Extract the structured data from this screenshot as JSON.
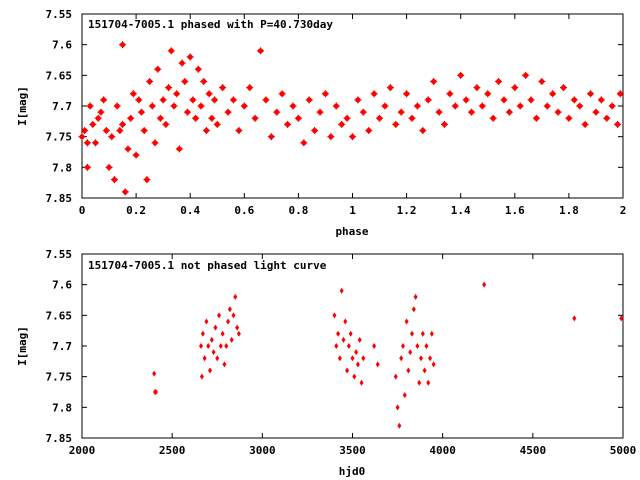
{
  "colors": {
    "points": "#ff0000"
  },
  "chart_data": [
    {
      "type": "scatter",
      "title": "151704-7005.1 phased with P=40.730day",
      "xlabel": "phase",
      "ylabel": "I[mag]",
      "xlim": [
        0,
        2
      ],
      "ylim": [
        7.55,
        7.85
      ],
      "y_inverted": true,
      "x_ticks": [
        "0",
        "0.2",
        "0.4",
        "0.6",
        "0.8",
        "1",
        "1.2",
        "1.4",
        "1.6",
        "1.8",
        "2"
      ],
      "y_ticks": [
        "7.55",
        "7.6",
        "7.65",
        "7.7",
        "7.75",
        "7.8",
        "7.85"
      ],
      "grid": false,
      "marker": "asterisk",
      "points": [
        [
          0.0,
          7.75
        ],
        [
          0.01,
          7.74
        ],
        [
          0.02,
          7.76
        ],
        [
          0.02,
          7.8
        ],
        [
          0.03,
          7.7
        ],
        [
          0.04,
          7.73
        ],
        [
          0.05,
          7.76
        ],
        [
          0.06,
          7.72
        ],
        [
          0.07,
          7.71
        ],
        [
          0.08,
          7.69
        ],
        [
          0.09,
          7.74
        ],
        [
          0.1,
          7.8
        ],
        [
          0.11,
          7.75
        ],
        [
          0.12,
          7.82
        ],
        [
          0.13,
          7.7
        ],
        [
          0.14,
          7.74
        ],
        [
          0.15,
          7.6
        ],
        [
          0.15,
          7.73
        ],
        [
          0.16,
          7.84
        ],
        [
          0.17,
          7.77
        ],
        [
          0.18,
          7.72
        ],
        [
          0.19,
          7.68
        ],
        [
          0.2,
          7.78
        ],
        [
          0.21,
          7.69
        ],
        [
          0.22,
          7.71
        ],
        [
          0.23,
          7.74
        ],
        [
          0.24,
          7.82
        ],
        [
          0.25,
          7.66
        ],
        [
          0.26,
          7.7
        ],
        [
          0.27,
          7.76
        ],
        [
          0.28,
          7.64
        ],
        [
          0.29,
          7.72
        ],
        [
          0.3,
          7.69
        ],
        [
          0.31,
          7.73
        ],
        [
          0.32,
          7.67
        ],
        [
          0.33,
          7.61
        ],
        [
          0.34,
          7.7
        ],
        [
          0.35,
          7.68
        ],
        [
          0.36,
          7.77
        ],
        [
          0.37,
          7.63
        ],
        [
          0.38,
          7.66
        ],
        [
          0.39,
          7.71
        ],
        [
          0.4,
          7.62
        ],
        [
          0.41,
          7.69
        ],
        [
          0.42,
          7.72
        ],
        [
          0.43,
          7.64
        ],
        [
          0.44,
          7.7
        ],
        [
          0.45,
          7.66
        ],
        [
          0.46,
          7.74
        ],
        [
          0.47,
          7.68
        ],
        [
          0.48,
          7.72
        ],
        [
          0.49,
          7.69
        ],
        [
          0.5,
          7.73
        ],
        [
          0.52,
          7.67
        ],
        [
          0.54,
          7.71
        ],
        [
          0.56,
          7.69
        ],
        [
          0.58,
          7.74
        ],
        [
          0.6,
          7.7
        ],
        [
          0.62,
          7.67
        ],
        [
          0.64,
          7.72
        ],
        [
          0.66,
          7.61
        ],
        [
          0.68,
          7.69
        ],
        [
          0.7,
          7.75
        ],
        [
          0.72,
          7.71
        ],
        [
          0.74,
          7.68
        ],
        [
          0.76,
          7.73
        ],
        [
          0.78,
          7.7
        ],
        [
          0.8,
          7.72
        ],
        [
          0.82,
          7.76
        ],
        [
          0.84,
          7.69
        ],
        [
          0.86,
          7.74
        ],
        [
          0.88,
          7.71
        ],
        [
          0.9,
          7.68
        ],
        [
          0.92,
          7.75
        ],
        [
          0.94,
          7.7
        ],
        [
          0.96,
          7.73
        ],
        [
          0.98,
          7.72
        ],
        [
          1.0,
          7.75
        ],
        [
          1.02,
          7.69
        ],
        [
          1.04,
          7.71
        ],
        [
          1.06,
          7.74
        ],
        [
          1.08,
          7.68
        ],
        [
          1.1,
          7.72
        ],
        [
          1.12,
          7.7
        ],
        [
          1.14,
          7.67
        ],
        [
          1.16,
          7.73
        ],
        [
          1.18,
          7.71
        ],
        [
          1.2,
          7.68
        ],
        [
          1.22,
          7.72
        ],
        [
          1.24,
          7.7
        ],
        [
          1.26,
          7.74
        ],
        [
          1.28,
          7.69
        ],
        [
          1.3,
          7.66
        ],
        [
          1.32,
          7.71
        ],
        [
          1.34,
          7.73
        ],
        [
          1.36,
          7.68
        ],
        [
          1.38,
          7.7
        ],
        [
          1.4,
          7.65
        ],
        [
          1.42,
          7.69
        ],
        [
          1.44,
          7.71
        ],
        [
          1.46,
          7.67
        ],
        [
          1.48,
          7.7
        ],
        [
          1.5,
          7.68
        ],
        [
          1.52,
          7.72
        ],
        [
          1.54,
          7.66
        ],
        [
          1.56,
          7.69
        ],
        [
          1.58,
          7.71
        ],
        [
          1.6,
          7.67
        ],
        [
          1.62,
          7.7
        ],
        [
          1.64,
          7.65
        ],
        [
          1.66,
          7.69
        ],
        [
          1.68,
          7.72
        ],
        [
          1.7,
          7.66
        ],
        [
          1.72,
          7.7
        ],
        [
          1.74,
          7.68
        ],
        [
          1.76,
          7.71
        ],
        [
          1.78,
          7.67
        ],
        [
          1.8,
          7.72
        ],
        [
          1.82,
          7.69
        ],
        [
          1.84,
          7.7
        ],
        [
          1.86,
          7.73
        ],
        [
          1.88,
          7.68
        ],
        [
          1.9,
          7.71
        ],
        [
          1.92,
          7.69
        ],
        [
          1.94,
          7.72
        ],
        [
          1.96,
          7.7
        ],
        [
          1.98,
          7.73
        ],
        [
          1.99,
          7.68
        ]
      ]
    },
    {
      "type": "scatter",
      "title": "151704-7005.1 not phased light curve",
      "xlabel": "hjd0",
      "ylabel": "I[mag]",
      "xlim": [
        2000,
        5000
      ],
      "ylim": [
        7.55,
        7.85
      ],
      "y_inverted": true,
      "x_ticks": [
        "2000",
        "2500",
        "3000",
        "3500",
        "4000",
        "4500",
        "5000"
      ],
      "y_ticks": [
        "7.55",
        "7.6",
        "7.65",
        "7.7",
        "7.75",
        "7.8",
        "7.85"
      ],
      "grid": false,
      "marker": "diamond",
      "points": [
        [
          2400,
          7.745
        ],
        [
          2405,
          7.775
        ],
        [
          2410,
          7.775
        ],
        [
          2660,
          7.7
        ],
        [
          2665,
          7.75
        ],
        [
          2670,
          7.68
        ],
        [
          2680,
          7.72
        ],
        [
          2690,
          7.66
        ],
        [
          2700,
          7.7
        ],
        [
          2710,
          7.74
        ],
        [
          2720,
          7.69
        ],
        [
          2730,
          7.71
        ],
        [
          2740,
          7.67
        ],
        [
          2750,
          7.72
        ],
        [
          2760,
          7.65
        ],
        [
          2770,
          7.7
        ],
        [
          2780,
          7.68
        ],
        [
          2790,
          7.73
        ],
        [
          2800,
          7.7
        ],
        [
          2810,
          7.66
        ],
        [
          2820,
          7.64
        ],
        [
          2830,
          7.69
        ],
        [
          2840,
          7.65
        ],
        [
          2850,
          7.62
        ],
        [
          2860,
          7.67
        ],
        [
          2870,
          7.68
        ],
        [
          3400,
          7.65
        ],
        [
          3410,
          7.7
        ],
        [
          3420,
          7.68
        ],
        [
          3430,
          7.72
        ],
        [
          3440,
          7.61
        ],
        [
          3450,
          7.69
        ],
        [
          3460,
          7.66
        ],
        [
          3470,
          7.74
        ],
        [
          3480,
          7.7
        ],
        [
          3490,
          7.68
        ],
        [
          3500,
          7.72
        ],
        [
          3510,
          7.75
        ],
        [
          3520,
          7.71
        ],
        [
          3530,
          7.73
        ],
        [
          3540,
          7.69
        ],
        [
          3550,
          7.76
        ],
        [
          3560,
          7.72
        ],
        [
          3620,
          7.7
        ],
        [
          3640,
          7.73
        ],
        [
          3740,
          7.75
        ],
        [
          3750,
          7.8
        ],
        [
          3760,
          7.83
        ],
        [
          3770,
          7.72
        ],
        [
          3780,
          7.7
        ],
        [
          3790,
          7.78
        ],
        [
          3800,
          7.66
        ],
        [
          3810,
          7.74
        ],
        [
          3820,
          7.71
        ],
        [
          3830,
          7.68
        ],
        [
          3840,
          7.64
        ],
        [
          3850,
          7.62
        ],
        [
          3860,
          7.7
        ],
        [
          3870,
          7.76
        ],
        [
          3880,
          7.72
        ],
        [
          3890,
          7.68
        ],
        [
          3900,
          7.74
        ],
        [
          3910,
          7.7
        ],
        [
          3920,
          7.76
        ],
        [
          3930,
          7.72
        ],
        [
          3940,
          7.68
        ],
        [
          3950,
          7.73
        ],
        [
          4230,
          7.6
        ],
        [
          4730,
          7.655
        ],
        [
          4990,
          7.655
        ]
      ]
    }
  ]
}
